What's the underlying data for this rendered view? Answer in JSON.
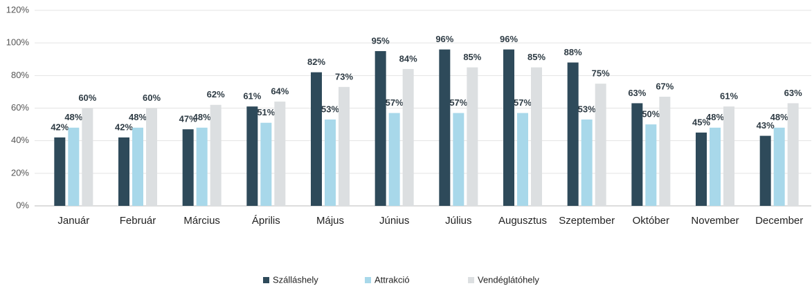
{
  "chart_data": {
    "type": "bar",
    "categories": [
      "Január",
      "Február",
      "Március",
      "Április",
      "Május",
      "Június",
      "Július",
      "Augusztus",
      "Szeptember",
      "Október",
      "November",
      "December"
    ],
    "series": [
      {
        "name": "Szálláshely",
        "color": "#2e4a5a",
        "values": [
          42,
          42,
          47,
          61,
          82,
          95,
          96,
          96,
          88,
          63,
          45,
          43
        ],
        "value_labels": [
          "42%",
          "42%",
          "47%",
          "61%",
          "82%",
          "95%",
          "96%",
          "96%",
          "88%",
          "63%",
          "45%",
          "43%"
        ]
      },
      {
        "name": "Attrakció",
        "color": "#a8d8ea",
        "values": [
          48,
          48,
          48,
          51,
          53,
          57,
          57,
          57,
          53,
          50,
          48,
          48
        ],
        "value_labels": [
          "48%",
          "48%",
          "48%",
          "51%",
          "53%",
          "57%",
          "57%",
          "57%",
          "53%",
          "50%",
          "48%",
          "48%"
        ]
      },
      {
        "name": "Vendéglátóhely",
        "color": "#dcdfe1",
        "values": [
          60,
          60,
          62,
          64,
          73,
          84,
          85,
          85,
          75,
          67,
          61,
          63
        ],
        "value_labels": [
          "60%",
          "60%",
          "62%",
          "64%",
          "73%",
          "84%",
          "85%",
          "85%",
          "75%",
          "67%",
          "61%",
          "63%"
        ]
      }
    ],
    "ylim": [
      0,
      120
    ],
    "yticks": [
      {
        "value": 0,
        "label": "0%"
      },
      {
        "value": 20,
        "label": "20%"
      },
      {
        "value": 40,
        "label": "40%"
      },
      {
        "value": 60,
        "label": "60%"
      },
      {
        "value": 80,
        "label": "80%"
      },
      {
        "value": 100,
        "label": "100%"
      },
      {
        "value": 120,
        "label": "120%"
      }
    ],
    "grid": true,
    "legend": "bottom"
  }
}
